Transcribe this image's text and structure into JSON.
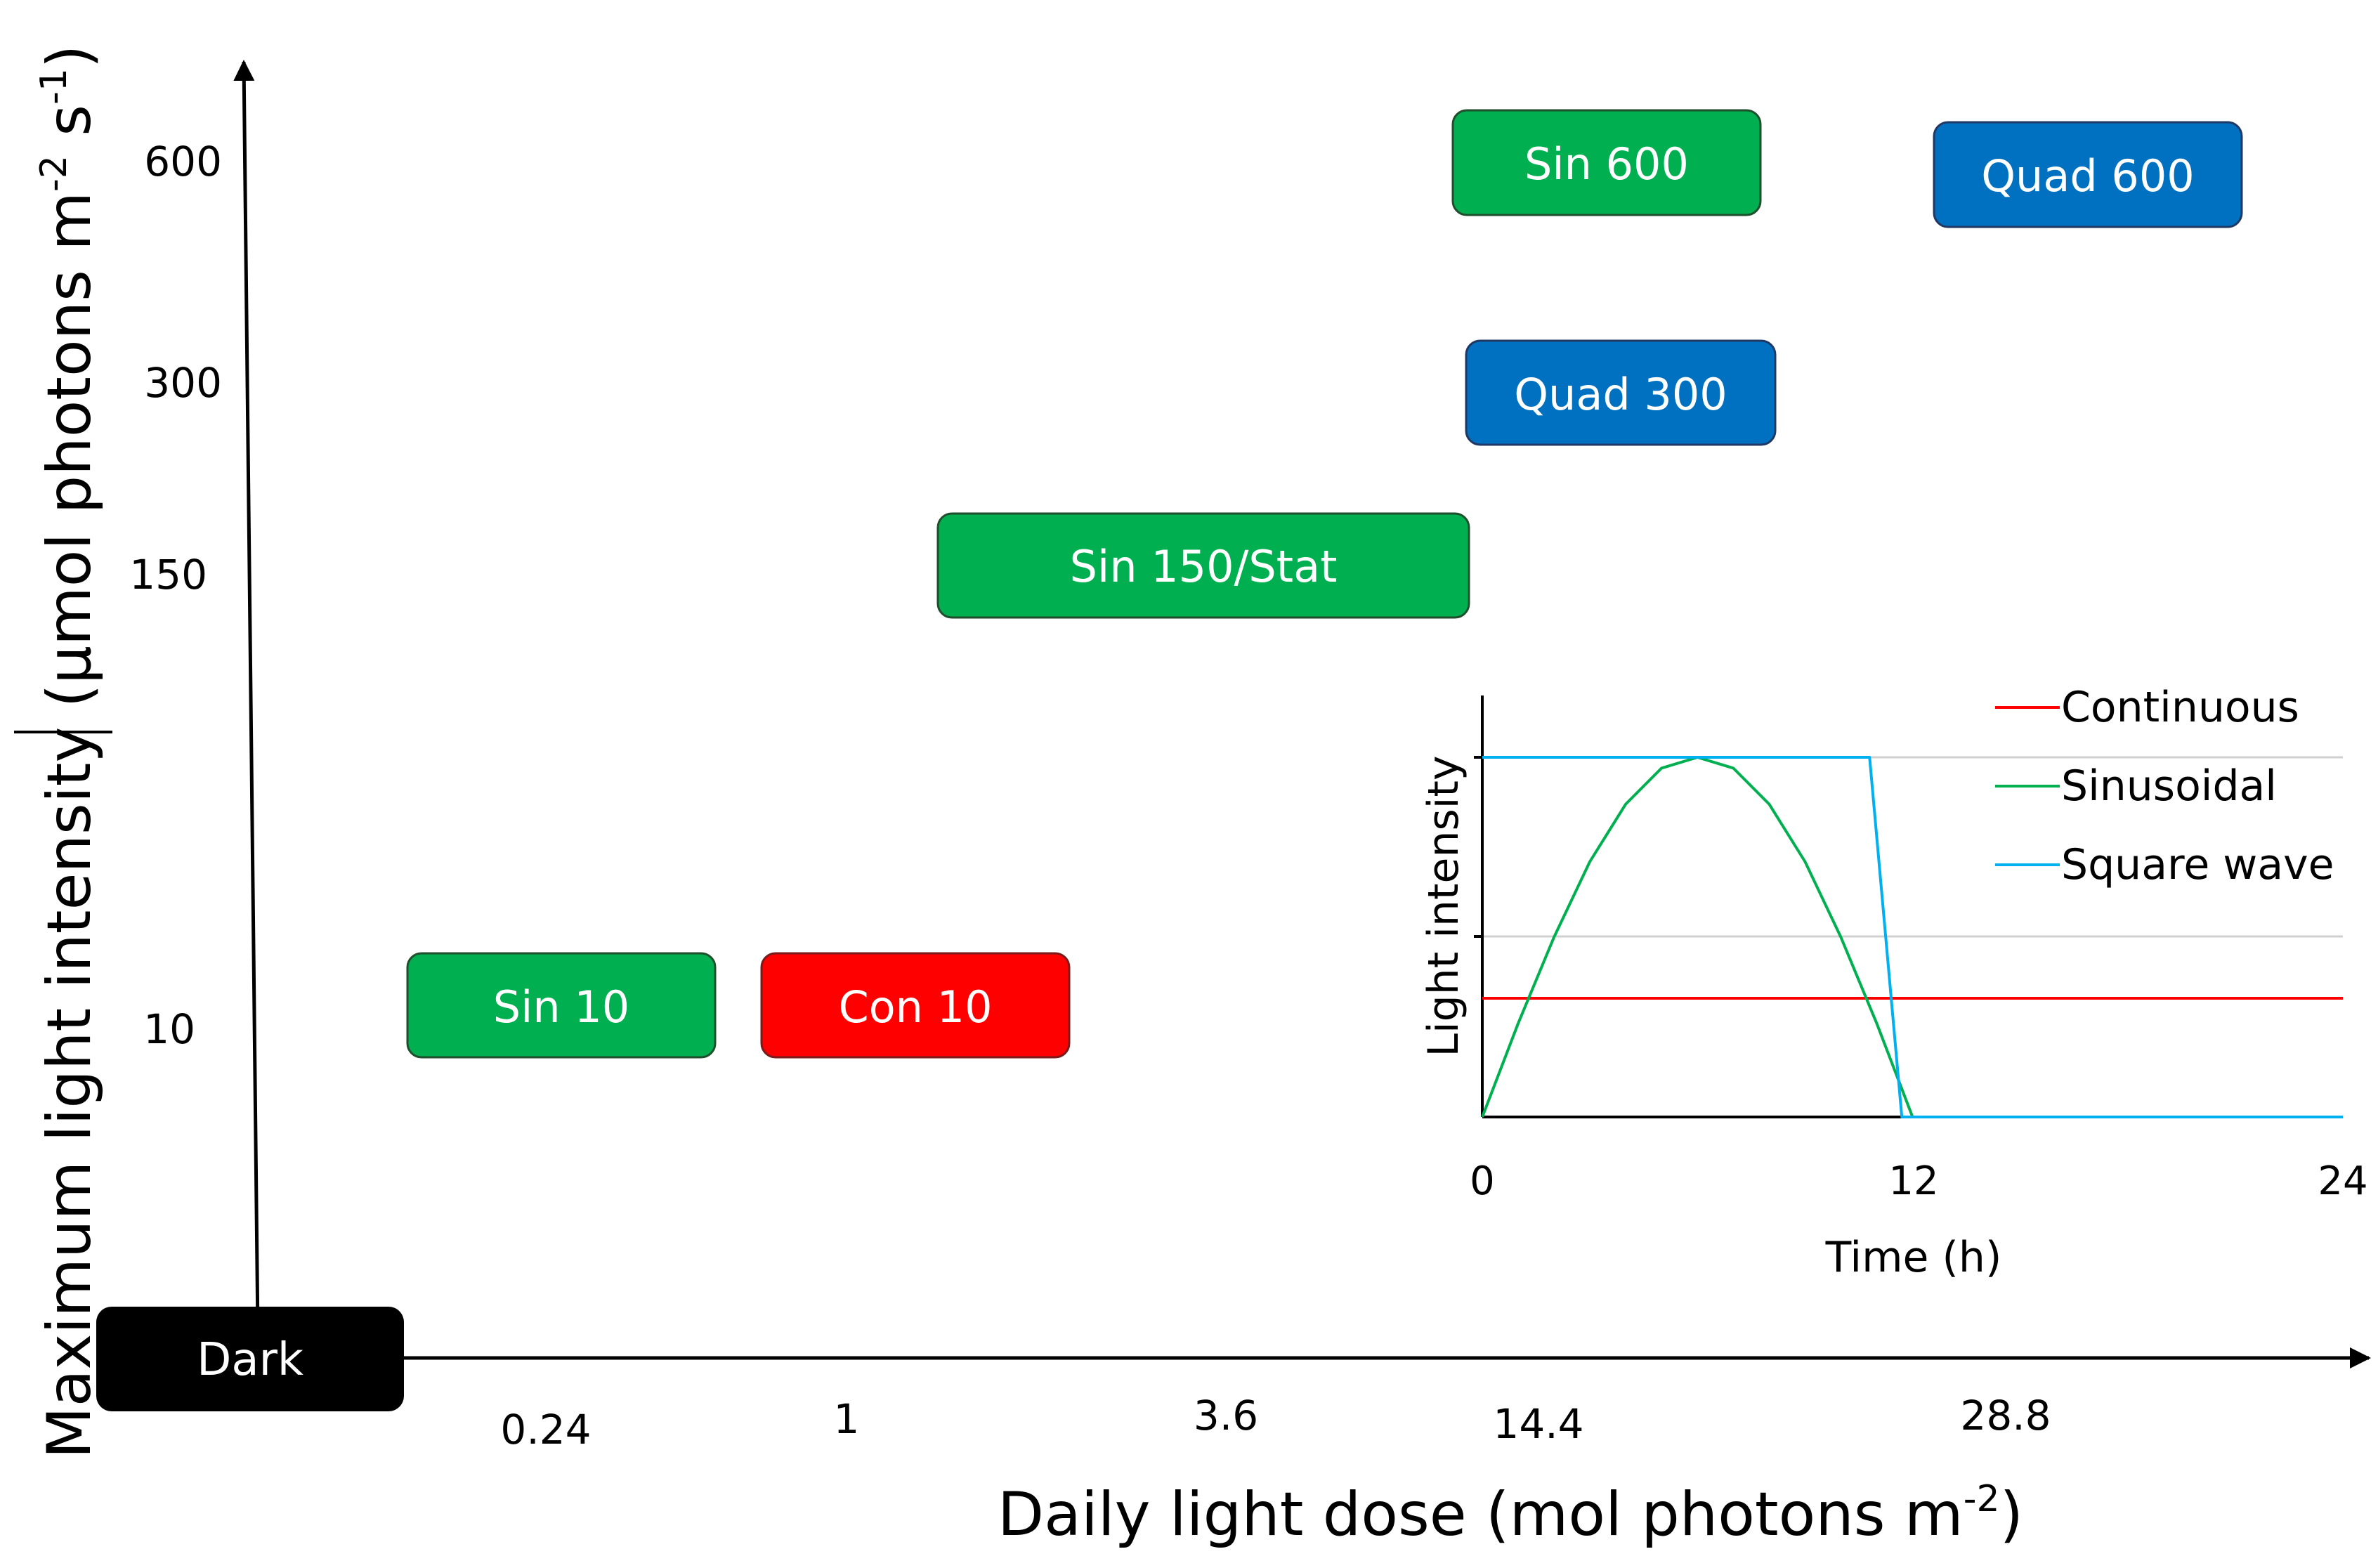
{
  "chart_data": [
    {
      "type": "scatter",
      "title": "",
      "xlabel": "Daily light dose (mol photons m",
      "xlabel_sup": "-2",
      "xlabel_end": ")",
      "ylabel": "Maximum light intensity (µmol photons m",
      "ylabel_sup1": "-2",
      "ylabel_mid": " s",
      "ylabel_sup2": "-1",
      "ylabel_end": ")",
      "x_ticks": [
        "0.24",
        "1",
        "3.6",
        "14.4",
        "28.8"
      ],
      "y_ticks": [
        "10",
        "150",
        "300",
        "600"
      ],
      "treatments": [
        {
          "label": "Dark",
          "dose": "0",
          "intensity": "0",
          "profile": "none",
          "color": "#000000"
        },
        {
          "label": "Sin 10",
          "dose": "0.24",
          "intensity": "10",
          "profile": "Sinusoidal",
          "color": "#00b050"
        },
        {
          "label": "Con 10",
          "dose": "1",
          "intensity": "10",
          "profile": "Continuous",
          "color": "#ff0000"
        },
        {
          "label": "Sin 150/Stat",
          "dose": "3.6",
          "intensity": "150",
          "profile": "Sinusoidal",
          "color": "#00b050"
        },
        {
          "label": "Sin 600",
          "dose": "14.4",
          "intensity": "600",
          "profile": "Sinusoidal",
          "color": "#00b050"
        },
        {
          "label": "Quad 300",
          "dose": "14.4",
          "intensity": "300",
          "profile": "Square wave",
          "color": "#0070c0"
        },
        {
          "label": "Quad 600",
          "dose": "28.8",
          "intensity": "600",
          "profile": "Square wave",
          "color": "#0070c0"
        }
      ]
    },
    {
      "type": "line",
      "title": "",
      "xlabel": "Time (h)",
      "ylabel": "Light intensity",
      "x_ticks": [
        "0",
        "12",
        "24"
      ],
      "xlim": [
        0,
        24
      ],
      "ylim": [
        0,
        1.2
      ],
      "legend_position": "top-right",
      "series": [
        {
          "name": "Continuous",
          "color": "#ff0000",
          "x": [
            0,
            24
          ],
          "y": [
            0.33,
            0.33
          ]
        },
        {
          "name": "Sinusoidal",
          "color": "#00b050",
          "x": [
            0,
            1,
            2,
            3,
            4,
            5,
            6,
            7,
            8,
            9,
            10,
            11,
            12
          ],
          "y": [
            0,
            0.26,
            0.5,
            0.71,
            0.87,
            0.97,
            1.0,
            0.97,
            0.87,
            0.71,
            0.5,
            0.26,
            0
          ]
        },
        {
          "name": "Square wave",
          "color": "#00b0f0",
          "x": [
            0,
            10.8,
            11.7,
            24
          ],
          "y": [
            1.0,
            1.0,
            0,
            0
          ]
        }
      ]
    }
  ]
}
